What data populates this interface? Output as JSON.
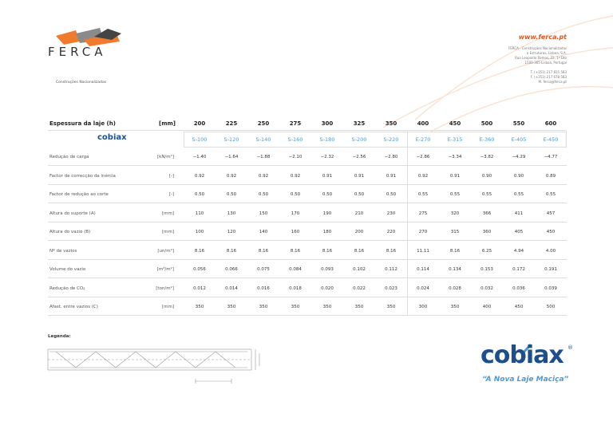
{
  "header": {
    "brand": "FERCA",
    "tagline": "Construções Nacionalizadas",
    "website": "www.ferca.pt",
    "address": [
      "FERCA - Construções Nacionalizadas",
      "e Estruturas, Lisboa, S.A.",
      "Rua Leopoldo Ramos, 22, 1º Dto",
      "1500-365 Lisboa, Portugal"
    ],
    "contact": [
      "T. (+351) 217 815 583",
      "F. (+351) 217 678 583",
      "M. ferca@ferca.pt"
    ]
  },
  "table": {
    "header": {
      "label": "Espessura da laje (h)",
      "unit": "[mm]",
      "values": [
        "200",
        "225",
        "250",
        "275",
        "300",
        "325",
        "350",
        "400",
        "450",
        "500",
        "550",
        "600"
      ]
    },
    "models": {
      "logo": "cobiax",
      "values": [
        "S-100",
        "S-120",
        "S-140",
        "S-160",
        "S-180",
        "S-200",
        "S-220",
        "E-270",
        "E-315",
        "E-360",
        "E-405",
        "E-450"
      ]
    },
    "rows": [
      {
        "label": "Redução de carga",
        "unit": "[kN/m²]",
        "values": [
          "−1.40",
          "−1.64",
          "−1.88",
          "−2.10",
          "−2.32",
          "−2.56",
          "−2.80",
          "−2.86",
          "−3.34",
          "−3.82",
          "−4.29",
          "−4.77"
        ]
      },
      {
        "label": "Factor de correcção da inércia",
        "unit": "[-]",
        "values": [
          "0.92",
          "0.92",
          "0.92",
          "0.92",
          "0.91",
          "0.91",
          "0.91",
          "0.92",
          "0.91",
          "0.90",
          "0.90",
          "0.89"
        ]
      },
      {
        "label": "Factor de redução ao corte",
        "unit": "[-]",
        "values": [
          "0.50",
          "0.50",
          "0.50",
          "0.50",
          "0.50",
          "0.50",
          "0.50",
          "0.55",
          "0.55",
          "0.55",
          "0.55",
          "0.55"
        ]
      },
      {
        "label": "Altura do suporte (A)",
        "unit": "[mm]",
        "values": [
          "110",
          "130",
          "150",
          "170",
          "190",
          "210",
          "230",
          "275",
          "320",
          "366",
          "411",
          "457"
        ]
      },
      {
        "label": "Altura do vazio (B)",
        "unit": "[mm]",
        "values": [
          "100",
          "120",
          "140",
          "160",
          "180",
          "200",
          "220",
          "270",
          "315",
          "360",
          "405",
          "450"
        ]
      },
      {
        "label": "Nº de vazios",
        "unit": "[un/m²]",
        "values": [
          "8.16",
          "8.16",
          "8.16",
          "8.16",
          "8.16",
          "8.16",
          "8.16",
          "11.11",
          "8.16",
          "6.25",
          "4.94",
          "4.00"
        ]
      },
      {
        "label": "Volume do vazio",
        "unit": "[m³/m²]",
        "values": [
          "0.056",
          "0.066",
          "0.075",
          "0.084",
          "0.093",
          "0.102",
          "0.112",
          "0.114",
          "0.134",
          "0.153",
          "0.172",
          "0.191"
        ]
      },
      {
        "label": "Redução de CO₂",
        "unit": "[ton/m²]",
        "values": [
          "0.012",
          "0.014",
          "0.016",
          "0.018",
          "0.020",
          "0.022",
          "0.023",
          "0.024",
          "0.028",
          "0.032",
          "0.036",
          "0.039"
        ]
      },
      {
        "label": "Afast. entre vazios (C)",
        "unit": "[mm]",
        "values": [
          "350",
          "350",
          "350",
          "350",
          "350",
          "350",
          "350",
          "300",
          "350",
          "400",
          "450",
          "500"
        ]
      }
    ]
  },
  "legend": {
    "title": "Legenda:"
  },
  "footer": {
    "brand": "cobiax",
    "registered": "®",
    "slogan": "“A Nova Laje Maciça”"
  }
}
